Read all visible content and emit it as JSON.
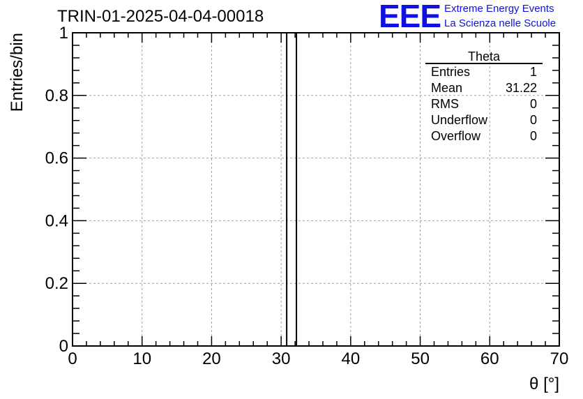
{
  "header": {
    "title": "TRIN-01-2025-04-04-00018",
    "logo": "EEE",
    "logo_line1": "Extreme Energy Events",
    "logo_line2": "La Scienza nelle Scuole"
  },
  "stats": {
    "title": "Theta",
    "rows": [
      {
        "label": "Entries",
        "value": "1"
      },
      {
        "label": "Mean",
        "value": "31.22"
      },
      {
        "label": "RMS",
        "value": "0"
      },
      {
        "label": "Underflow",
        "value": "0"
      },
      {
        "label": "Overflow",
        "value": "0"
      }
    ]
  },
  "chart_data": {
    "type": "bar",
    "title": "TRIN-01-2025-04-04-00018",
    "xlabel": "θ [°]",
    "ylabel": "Entries/bin",
    "xlim": [
      0,
      70
    ],
    "ylim": [
      0,
      1
    ],
    "xticks": [
      0,
      10,
      20,
      30,
      40,
      50,
      60,
      70
    ],
    "yticks": [
      "0",
      "0.2",
      "0.4",
      "0.6",
      "0.8",
      "1"
    ],
    "grid": true,
    "bins": [
      {
        "x0": 30.8,
        "x1": 32.2,
        "value": 1
      }
    ],
    "colors": {
      "axis": "#000000",
      "grid": "#a0a0a0",
      "bar": "#000000"
    }
  }
}
